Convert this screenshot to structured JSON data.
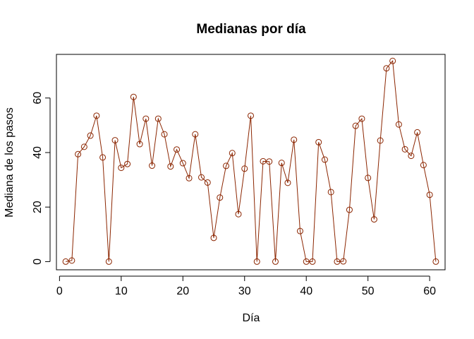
{
  "chart_data": {
    "type": "line",
    "title": "Medianas por día",
    "xlabel": "Día",
    "ylabel": "Mediana de los pasos",
    "xlim": [
      -0.5,
      62.5
    ],
    "ylim": [
      -3,
      76
    ],
    "xticks": [
      0,
      10,
      20,
      30,
      40,
      50,
      60
    ],
    "yticks": [
      0,
      20,
      40,
      60
    ],
    "grid": false,
    "color": "#8B2500",
    "marker": "open-circle",
    "x": [
      1,
      2,
      3,
      4,
      5,
      6,
      7,
      8,
      9,
      10,
      11,
      12,
      13,
      14,
      15,
      16,
      17,
      18,
      19,
      20,
      21,
      22,
      23,
      24,
      25,
      26,
      27,
      28,
      29,
      30,
      31,
      32,
      33,
      34,
      35,
      36,
      37,
      38,
      39,
      40,
      41,
      42,
      43,
      44,
      45,
      46,
      47,
      48,
      49,
      50,
      51,
      52,
      53,
      54,
      55,
      56,
      57,
      58,
      59,
      60,
      61
    ],
    "y": [
      0,
      0.4,
      39.4,
      42.1,
      46.2,
      53.5,
      38.2,
      0,
      44.5,
      34.4,
      35.8,
      60.4,
      43.1,
      52.4,
      35.2,
      52.4,
      46.7,
      34.9,
      41.1,
      36.1,
      30.6,
      46.7,
      30.9,
      29.0,
      8.7,
      23.5,
      35.1,
      39.8,
      17.4,
      34.1,
      53.5,
      0,
      36.8,
      36.7,
      0,
      36.2,
      28.9,
      44.7,
      11.2,
      0,
      0,
      43.8,
      37.4,
      25.5,
      0,
      0.1,
      19.0,
      49.8,
      52.4,
      30.7,
      15.5,
      44.4,
      70.9,
      73.6,
      50.3,
      41.2,
      38.8,
      47.4,
      35.4,
      24.5,
      0
    ]
  }
}
